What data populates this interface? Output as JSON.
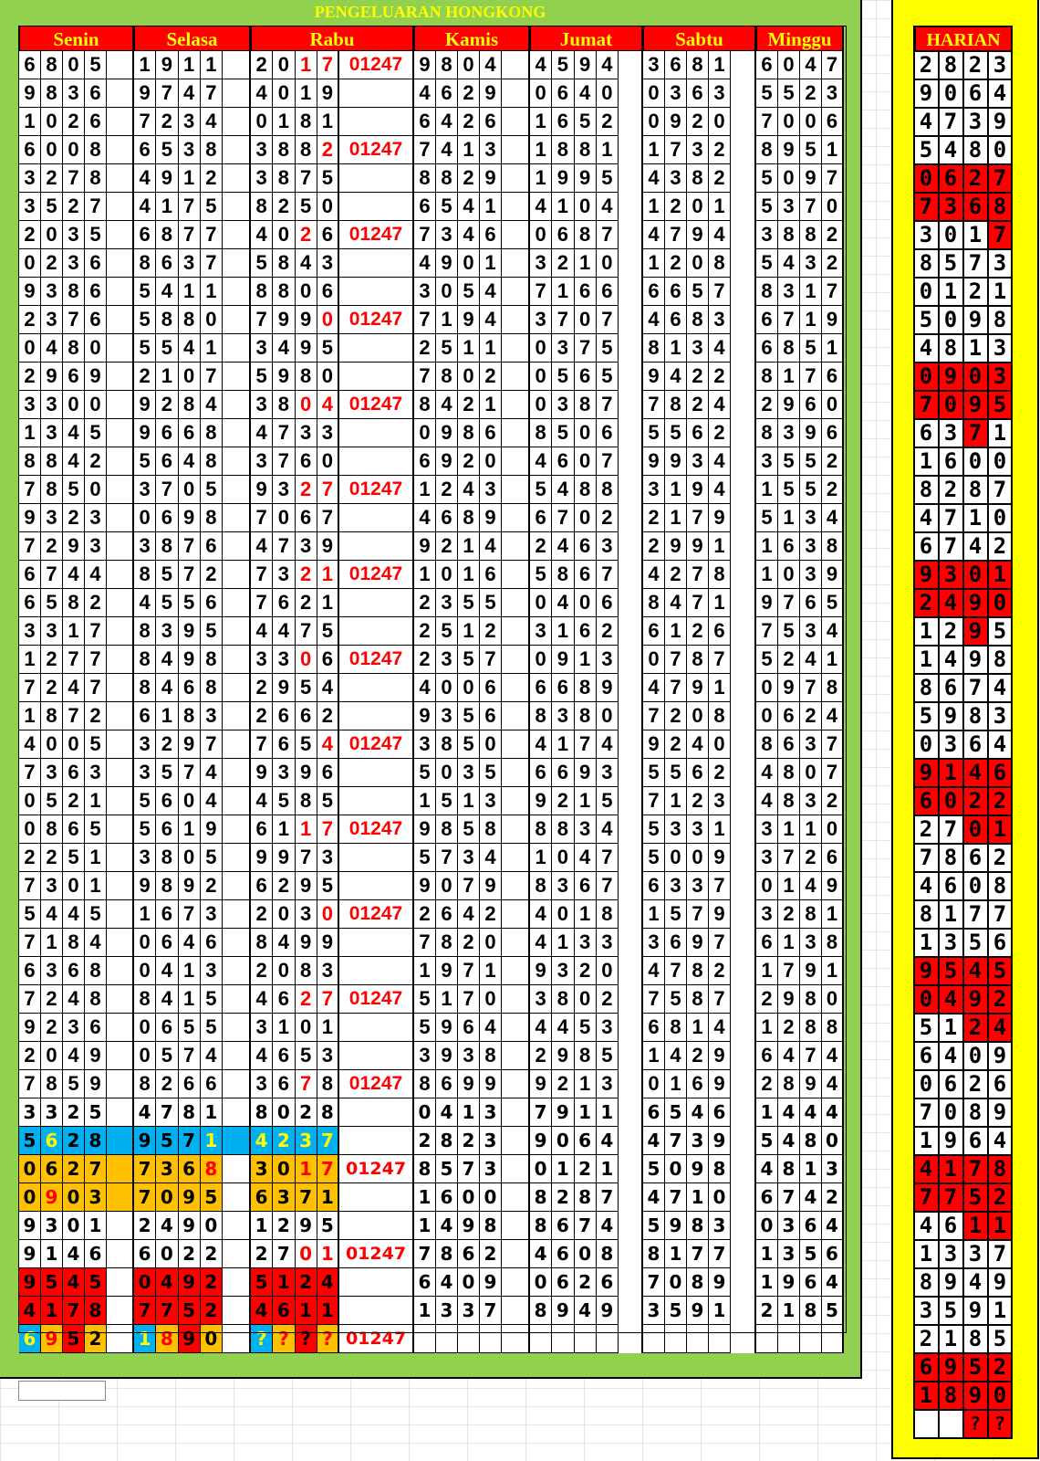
{
  "title": "PENGELUARAN HONGKONG",
  "palette": {
    "green_panel": "#92D050",
    "header_bg": "#FF0000",
    "header_text": "#FFFF00",
    "blue": "#00B0F0",
    "orange": "#FFC000",
    "red": "#FF0000",
    "yellow": "#FFFF00"
  },
  "style_codes": {
    "": {
      "bg": "#FFFFFF",
      "fg": "#000000"
    },
    "r": {
      "bg": "#FFFFFF",
      "fg": "#FF0000"
    },
    "B": {
      "bg": "#00B0F0",
      "fg": "#000000"
    },
    "By": {
      "bg": "#00B0F0",
      "fg": "#FFFF00"
    },
    "O": {
      "bg": "#FFC000",
      "fg": "#000000"
    },
    "Or": {
      "bg": "#FFC000",
      "fg": "#FF0000"
    },
    "R": {
      "bg": "#FF0000",
      "fg": "#000000"
    }
  },
  "headers": [
    "Senin",
    "Selasa",
    "Rabu",
    "Kamis",
    "Jumat",
    "Sabtu",
    "Minggu"
  ],
  "rows": [
    {
      "senin": "6805",
      "selasa": "1911",
      "rabu": "2017",
      "extra": "01247",
      "kamis": "9804",
      "jumat": "4594",
      "sabtu": "3681",
      "minggu": "6047",
      "rabu_style": [
        "",
        "",
        "r",
        "r"
      ]
    },
    {
      "senin": "9836",
      "selasa": "9747",
      "rabu": "4019",
      "extra": "",
      "kamis": "4629",
      "jumat": "0640",
      "sabtu": "0363",
      "minggu": "5523"
    },
    {
      "senin": "1026",
      "selasa": "7234",
      "rabu": "0181",
      "extra": "",
      "kamis": "6426",
      "jumat": "1652",
      "sabtu": "0920",
      "minggu": "7006"
    },
    {
      "senin": "6008",
      "selasa": "6538",
      "rabu": "3882",
      "extra": "01247",
      "kamis": "7413",
      "jumat": "1881",
      "sabtu": "1732",
      "minggu": "8951",
      "rabu_style": [
        "",
        "",
        "",
        "r"
      ]
    },
    {
      "senin": "3278",
      "selasa": "4912",
      "rabu": "3875",
      "extra": "",
      "kamis": "8829",
      "jumat": "1995",
      "sabtu": "4382",
      "minggu": "5097"
    },
    {
      "senin": "3527",
      "selasa": "4175",
      "rabu": "8250",
      "extra": "",
      "kamis": "6541",
      "jumat": "4104",
      "sabtu": "1201",
      "minggu": "5370"
    },
    {
      "senin": "2035",
      "selasa": "6877",
      "rabu": "4026",
      "extra": "01247",
      "kamis": "7346",
      "jumat": "0687",
      "sabtu": "4794",
      "minggu": "3882",
      "rabu_style": [
        "",
        "",
        "r",
        ""
      ]
    },
    {
      "senin": "0236",
      "selasa": "8637",
      "rabu": "5843",
      "extra": "",
      "kamis": "4901",
      "jumat": "3210",
      "sabtu": "1208",
      "minggu": "5432"
    },
    {
      "senin": "9386",
      "selasa": "5411",
      "rabu": "8806",
      "extra": "",
      "kamis": "3054",
      "jumat": "7166",
      "sabtu": "6657",
      "minggu": "8317"
    },
    {
      "senin": "2376",
      "selasa": "5880",
      "rabu": "7990",
      "extra": "01247",
      "kamis": "7194",
      "jumat": "3707",
      "sabtu": "4683",
      "minggu": "6719",
      "rabu_style": [
        "",
        "",
        "",
        "r"
      ]
    },
    {
      "senin": "0480",
      "selasa": "5541",
      "rabu": "3495",
      "extra": "",
      "kamis": "2511",
      "jumat": "0375",
      "sabtu": "8134",
      "minggu": "6851"
    },
    {
      "senin": "2969",
      "selasa": "2107",
      "rabu": "5980",
      "extra": "",
      "kamis": "7802",
      "jumat": "0565",
      "sabtu": "9422",
      "minggu": "8176"
    },
    {
      "senin": "3300",
      "selasa": "9284",
      "rabu": "3804",
      "extra": "01247",
      "kamis": "8421",
      "jumat": "0387",
      "sabtu": "7824",
      "minggu": "2960",
      "rabu_style": [
        "",
        "",
        "r",
        "r"
      ]
    },
    {
      "senin": "1345",
      "selasa": "9668",
      "rabu": "4733",
      "extra": "",
      "kamis": "0986",
      "jumat": "8506",
      "sabtu": "5562",
      "minggu": "8396"
    },
    {
      "senin": "8842",
      "selasa": "5648",
      "rabu": "3760",
      "extra": "",
      "kamis": "6920",
      "jumat": "4607",
      "sabtu": "9934",
      "minggu": "3552"
    },
    {
      "senin": "7850",
      "selasa": "3705",
      "rabu": "9327",
      "extra": "01247",
      "kamis": "1243",
      "jumat": "5488",
      "sabtu": "3194",
      "minggu": "1552",
      "rabu_style": [
        "",
        "",
        "r",
        "r"
      ]
    },
    {
      "senin": "9323",
      "selasa": "0698",
      "rabu": "7067",
      "extra": "",
      "kamis": "4689",
      "jumat": "6702",
      "sabtu": "2179",
      "minggu": "5134"
    },
    {
      "senin": "7293",
      "selasa": "3876",
      "rabu": "4739",
      "extra": "",
      "kamis": "9214",
      "jumat": "2463",
      "sabtu": "2991",
      "minggu": "1638"
    },
    {
      "senin": "6744",
      "selasa": "8572",
      "rabu": "7321",
      "extra": "01247",
      "kamis": "1016",
      "jumat": "5867",
      "sabtu": "4278",
      "minggu": "1039",
      "rabu_style": [
        "",
        "",
        "r",
        "r"
      ]
    },
    {
      "senin": "6582",
      "selasa": "4556",
      "rabu": "7621",
      "extra": "",
      "kamis": "2355",
      "jumat": "0406",
      "sabtu": "8471",
      "minggu": "9765"
    },
    {
      "senin": "3317",
      "selasa": "8395",
      "rabu": "4475",
      "extra": "",
      "kamis": "2512",
      "jumat": "3162",
      "sabtu": "6126",
      "minggu": "7534"
    },
    {
      "senin": "1277",
      "selasa": "8498",
      "rabu": "3306",
      "extra": "01247",
      "kamis": "2357",
      "jumat": "0913",
      "sabtu": "0787",
      "minggu": "5241",
      "rabu_style": [
        "",
        "",
        "r",
        ""
      ]
    },
    {
      "senin": "7247",
      "selasa": "8468",
      "rabu": "2954",
      "extra": "",
      "kamis": "4006",
      "jumat": "6689",
      "sabtu": "4791",
      "minggu": "0978"
    },
    {
      "senin": "1872",
      "selasa": "6183",
      "rabu": "2662",
      "extra": "",
      "kamis": "9356",
      "jumat": "8380",
      "sabtu": "7208",
      "minggu": "0624"
    },
    {
      "senin": "4005",
      "selasa": "3297",
      "rabu": "7654",
      "extra": "01247",
      "kamis": "3850",
      "jumat": "4174",
      "sabtu": "9240",
      "minggu": "8637",
      "rabu_style": [
        "",
        "",
        "",
        "r"
      ]
    },
    {
      "senin": "7363",
      "selasa": "3574",
      "rabu": "9396",
      "extra": "",
      "kamis": "5035",
      "jumat": "6693",
      "sabtu": "5562",
      "minggu": "4807"
    },
    {
      "senin": "0521",
      "selasa": "5604",
      "rabu": "4585",
      "extra": "",
      "kamis": "1513",
      "jumat": "9215",
      "sabtu": "7123",
      "minggu": "4832"
    },
    {
      "senin": "0865",
      "selasa": "5619",
      "rabu": "6117",
      "extra": "01247",
      "kamis": "9858",
      "jumat": "8834",
      "sabtu": "5331",
      "minggu": "3110",
      "rabu_style": [
        "",
        "",
        "r",
        "r"
      ]
    },
    {
      "senin": "2251",
      "selasa": "3805",
      "rabu": "9973",
      "extra": "",
      "kamis": "5734",
      "jumat": "1047",
      "sabtu": "5009",
      "minggu": "3726"
    },
    {
      "senin": "7301",
      "selasa": "9892",
      "rabu": "6295",
      "extra": "",
      "kamis": "9079",
      "jumat": "8367",
      "sabtu": "6337",
      "minggu": "0149"
    },
    {
      "senin": "5445",
      "selasa": "1673",
      "rabu": "2030",
      "extra": "01247",
      "kamis": "2642",
      "jumat": "4018",
      "sabtu": "1579",
      "minggu": "3281",
      "rabu_style": [
        "",
        "",
        "",
        "r"
      ]
    },
    {
      "senin": "7184",
      "selasa": "0646",
      "rabu": "8499",
      "extra": "",
      "kamis": "7820",
      "jumat": "4133",
      "sabtu": "3697",
      "minggu": "6138"
    },
    {
      "senin": "6368",
      "selasa": "0413",
      "rabu": "2083",
      "extra": "",
      "kamis": "1971",
      "jumat": "9320",
      "sabtu": "4782",
      "minggu": "1791"
    },
    {
      "senin": "7248",
      "selasa": "8415",
      "rabu": "4627",
      "extra": "01247",
      "kamis": "5170",
      "jumat": "3802",
      "sabtu": "7587",
      "minggu": "2980",
      "rabu_style": [
        "",
        "",
        "r",
        "r"
      ]
    },
    {
      "senin": "9236",
      "selasa": "0655",
      "rabu": "3101",
      "extra": "",
      "kamis": "5964",
      "jumat": "4453",
      "sabtu": "6814",
      "minggu": "1288"
    },
    {
      "senin": "2049",
      "selasa": "0574",
      "rabu": "4653",
      "extra": "",
      "kamis": "3938",
      "jumat": "2985",
      "sabtu": "1429",
      "minggu": "6474"
    },
    {
      "senin": "7859",
      "selasa": "8266",
      "rabu": "3678",
      "extra": "01247",
      "kamis": "8699",
      "jumat": "9213",
      "sabtu": "0169",
      "minggu": "2894",
      "rabu_style": [
        "",
        "",
        "r",
        ""
      ]
    },
    {
      "senin": "3325",
      "selasa": "4781",
      "rabu": "8028",
      "extra": "",
      "kamis": "0413",
      "jumat": "7911",
      "sabtu": "6546",
      "minggu": "1444"
    },
    {
      "senin": "5628",
      "selasa": "9571",
      "rabu": "4237",
      "extra": "",
      "kamis": "2823",
      "jumat": "9064",
      "sabtu": "4739",
      "minggu": "5480",
      "senin_style": [
        "B",
        "By",
        "B",
        "B"
      ],
      "senin_gap": "B",
      "selasa_style": [
        "B",
        "B",
        "B",
        "By"
      ],
      "selasa_gap": "B",
      "rabu_style": [
        "By",
        "By",
        "By",
        "By"
      ]
    },
    {
      "senin": "0627",
      "selasa": "7368",
      "rabu": "3017",
      "extra": "01247",
      "kamis": "8573",
      "jumat": "0121",
      "sabtu": "5098",
      "minggu": "4813",
      "senin_style": [
        "O",
        "O",
        "O",
        "O"
      ],
      "senin_gap": "O",
      "selasa_style": [
        "O",
        "O",
        "O",
        "Or"
      ],
      "rabu_style": [
        "O",
        "O",
        "Or",
        "Or"
      ]
    },
    {
      "senin": "0903",
      "selasa": "7095",
      "rabu": "6371",
      "extra": "",
      "kamis": "1600",
      "jumat": "8287",
      "sabtu": "4710",
      "minggu": "6742",
      "senin_style": [
        "O",
        "Or",
        "O",
        "O"
      ],
      "senin_gap": "O",
      "selasa_style": [
        "O",
        "O",
        "O",
        "O"
      ],
      "rabu_style": [
        "O",
        "O",
        "O",
        "O"
      ]
    },
    {
      "senin": "9301",
      "selasa": "2490",
      "rabu": "1295",
      "extra": "",
      "kamis": "1498",
      "jumat": "8674",
      "sabtu": "5983",
      "minggu": "0364"
    },
    {
      "senin": "9146",
      "selasa": "6022",
      "rabu": "2701",
      "extra": "01247",
      "kamis": "7862",
      "jumat": "4608",
      "sabtu": "8177",
      "minggu": "1356",
      "rabu_style": [
        "",
        "",
        "r",
        "r"
      ]
    },
    {
      "senin": "9545",
      "selasa": "0492",
      "rabu": "5124",
      "extra": "",
      "kamis": "6409",
      "jumat": "0626",
      "sabtu": "7089",
      "minggu": "1964",
      "senin_style": [
        "R",
        "R",
        "R",
        "R"
      ],
      "selasa_style": [
        "R",
        "R",
        "R",
        "R"
      ],
      "rabu_style": [
        "R",
        "R",
        "R",
        "R"
      ]
    },
    {
      "senin": "4178",
      "selasa": "7752",
      "rabu": "4611",
      "extra": "",
      "kamis": "1337",
      "jumat": "8949",
      "sabtu": "3591",
      "minggu": "2185",
      "senin_style": [
        "R",
        "R",
        "R",
        "R"
      ],
      "selasa_style": [
        "R",
        "R",
        "R",
        "R"
      ],
      "rabu_style": [
        "R",
        "R",
        "R",
        "R"
      ]
    },
    {
      "senin": "6952",
      "selasa": "1890",
      "rabu": "????",
      "extra": "01247",
      "kamis": "",
      "jumat": "",
      "sabtu": "",
      "minggu": "",
      "senin_style": [
        "By",
        "Or",
        "R",
        "O"
      ],
      "selasa_style": [
        "By",
        "Or",
        "R",
        "O"
      ],
      "rabu_style": [
        "By",
        "Or",
        "R",
        "Or"
      ]
    }
  ],
  "harian": {
    "title": "HARIAN",
    "rows": [
      {
        "v": "2823"
      },
      {
        "v": "9064"
      },
      {
        "v": "4739"
      },
      {
        "v": "5480"
      },
      {
        "v": "0627",
        "hl": "RRRR"
      },
      {
        "v": "7368",
        "hl": "RRRR"
      },
      {
        "v": "3017",
        "hl": "---R"
      },
      {
        "v": "8573"
      },
      {
        "v": "0121"
      },
      {
        "v": "5098"
      },
      {
        "v": "4813"
      },
      {
        "v": "0903",
        "hl": "RRRR"
      },
      {
        "v": "7095",
        "hl": "RRRR"
      },
      {
        "v": "6371",
        "hl": "--R-"
      },
      {
        "v": "1600"
      },
      {
        "v": "8287"
      },
      {
        "v": "4710"
      },
      {
        "v": "6742"
      },
      {
        "v": "9301",
        "hl": "RRRR"
      },
      {
        "v": "2490",
        "hl": "RRRR"
      },
      {
        "v": "1295",
        "hl": "--R-"
      },
      {
        "v": "1498"
      },
      {
        "v": "8674"
      },
      {
        "v": "5983"
      },
      {
        "v": "0364"
      },
      {
        "v": "9146",
        "hl": "RRRR"
      },
      {
        "v": "6022",
        "hl": "RRRR"
      },
      {
        "v": "2701",
        "hl": "--RR"
      },
      {
        "v": "7862"
      },
      {
        "v": "4608"
      },
      {
        "v": "8177"
      },
      {
        "v": "1356"
      },
      {
        "v": "9545",
        "hl": "RRRR"
      },
      {
        "v": "0492",
        "hl": "RRRR"
      },
      {
        "v": "5124",
        "hl": "--RR"
      },
      {
        "v": "6409"
      },
      {
        "v": "0626"
      },
      {
        "v": "7089"
      },
      {
        "v": "1964"
      },
      {
        "v": "4178",
        "hl": "RRRR"
      },
      {
        "v": "7752",
        "hl": "RRRR"
      },
      {
        "v": "4611",
        "hl": "--RR"
      },
      {
        "v": "1337"
      },
      {
        "v": "8949"
      },
      {
        "v": "3591"
      },
      {
        "v": "2185"
      },
      {
        "v": "6952",
        "hl": "RRRR"
      },
      {
        "v": "1890",
        "hl": "RRRR"
      },
      {
        "v": "  ??",
        "hl": "--RR"
      }
    ]
  }
}
